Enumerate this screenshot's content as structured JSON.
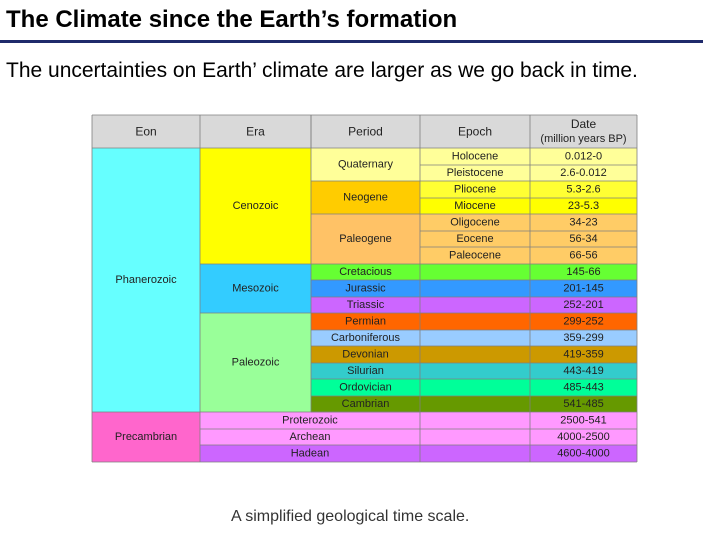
{
  "slide": {
    "title": "The Climate since the Earth’s formation",
    "subtitle": "The uncertainties on Earth’ climate are larger as we go back in time.",
    "caption": "A simplified geological time scale."
  },
  "table": {
    "headers": {
      "eon": "Eon",
      "era": "Era",
      "period": "Period",
      "epoch": "Epoch",
      "date_line1": "Date",
      "date_line2": "(million years BP)"
    },
    "eons": [
      {
        "name": "Phanerozoic",
        "color": "#66ffff"
      },
      {
        "name": "Precambrian",
        "color": "#ff66cc"
      }
    ],
    "eras": [
      {
        "name": "Cenozoic",
        "color": "#ffff00"
      },
      {
        "name": "Mesozoic",
        "color": "#33ccff"
      },
      {
        "name": "Paleozoic",
        "color": "#99ff99"
      },
      {
        "name": "Proterozoic",
        "color": "#ff99ff"
      },
      {
        "name": "Archean",
        "color": "#ff99ff"
      },
      {
        "name": "Hadean",
        "color": "#cc66ff"
      }
    ],
    "periods": [
      {
        "name": "Quaternary",
        "color": "#ffff99"
      },
      {
        "name": "Neogene",
        "color": "#ffcc00"
      },
      {
        "name": "Paleogene",
        "color": "#ffc266"
      },
      {
        "name": "Cretacious",
        "color": "#66ff33"
      },
      {
        "name": "Jurassic",
        "color": "#3399ff"
      },
      {
        "name": "Triassic",
        "color": "#cc66ff"
      },
      {
        "name": "Permian",
        "color": "#ff6600"
      },
      {
        "name": "Carboniferous",
        "color": "#99ccff"
      },
      {
        "name": "Devonian",
        "color": "#cc9900"
      },
      {
        "name": "Silurian",
        "color": "#33cccc"
      },
      {
        "name": "Ordovician",
        "color": "#00ff99"
      },
      {
        "name": "Cambrian",
        "color": "#669900"
      }
    ],
    "epochs": [
      {
        "name": "Holocene",
        "color": "#ffff99"
      },
      {
        "name": "Pleistocene",
        "color": "#ffff99"
      },
      {
        "name": "Pliocene",
        "color": "#ffff33"
      },
      {
        "name": "Miocene",
        "color": "#ffff00"
      },
      {
        "name": "Oligocene",
        "color": "#ffcc66"
      },
      {
        "name": "Eocene",
        "color": "#ffcc66"
      },
      {
        "name": "Paleocene",
        "color": "#ffcc66"
      }
    ],
    "dates": [
      {
        "value": "0.012-0",
        "color": "#ffff99"
      },
      {
        "value": "2.6-0.012",
        "color": "#ffff99"
      },
      {
        "value": "5.3-2.6",
        "color": "#ffff33"
      },
      {
        "value": "23-5.3",
        "color": "#ffff00"
      },
      {
        "value": "34-23",
        "color": "#ffcc66"
      },
      {
        "value": "56-34",
        "color": "#ffcc66"
      },
      {
        "value": "66-56",
        "color": "#ffcc66"
      },
      {
        "value": "145-66",
        "color": "#66ff33"
      },
      {
        "value": "201-145",
        "color": "#3399ff"
      },
      {
        "value": "252-201",
        "color": "#cc66ff"
      },
      {
        "value": "299-252",
        "color": "#ff6600"
      },
      {
        "value": "359-299",
        "color": "#99ccff"
      },
      {
        "value": "419-359",
        "color": "#cc9900"
      },
      {
        "value": "443-419",
        "color": "#33cccc"
      },
      {
        "value": "485-443",
        "color": "#00ff99"
      },
      {
        "value": "541-485",
        "color": "#669900"
      },
      {
        "value": "2500-541",
        "color": "#ff99ff"
      },
      {
        "value": "4000-2500",
        "color": "#ff99ff"
      },
      {
        "value": "4600-4000",
        "color": "#cc66ff"
      }
    ],
    "header_color": "#d9d9d9",
    "empty_cell_color": "#ffff99"
  }
}
